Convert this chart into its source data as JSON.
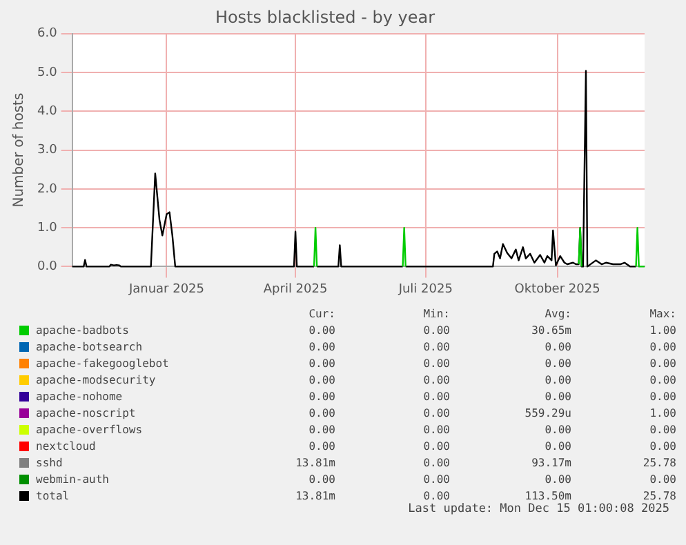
{
  "chart_data": {
    "type": "line",
    "title": "Hosts blacklisted - by year",
    "ylabel": "Number of hosts",
    "x": [
      "2024-11-10",
      "2024-11-18",
      "2024-11-19",
      "2024-11-20",
      "2024-12-06",
      "2024-12-07",
      "2024-12-09",
      "2024-12-11",
      "2024-12-13",
      "2024-12-14",
      "2025-01-04",
      "2025-01-07",
      "2025-01-09",
      "2025-01-10",
      "2025-01-12",
      "2025-01-15",
      "2025-01-17",
      "2025-01-19",
      "2025-01-21",
      "2025-04-14",
      "2025-04-15",
      "2025-04-16",
      "2025-04-28",
      "2025-04-29",
      "2025-04-30",
      "2025-05-15",
      "2025-05-16",
      "2025-05-17",
      "2025-06-29",
      "2025-06-30",
      "2025-07-01",
      "2025-08-31",
      "2025-09-01",
      "2025-09-03",
      "2025-09-05",
      "2025-09-07",
      "2025-09-10",
      "2025-09-13",
      "2025-09-16",
      "2025-09-18",
      "2025-09-21",
      "2025-09-23",
      "2025-09-26",
      "2025-09-29",
      "2025-10-03",
      "2025-10-06",
      "2025-10-08",
      "2025-10-11",
      "2025-10-12",
      "2025-10-14",
      "2025-10-17",
      "2025-10-20",
      "2025-10-22",
      "2025-10-26",
      "2025-10-28",
      "2025-10-30",
      "2025-10-31",
      "2025-11-01",
      "2025-11-02",
      "2025-11-04",
      "2025-11-05",
      "2025-11-11",
      "2025-11-15",
      "2025-11-18",
      "2025-11-23",
      "2025-11-28",
      "2025-12-01",
      "2025-12-05",
      "2025-12-09",
      "2025-12-10",
      "2025-12-11",
      "2025-12-15"
    ],
    "series": [
      {
        "name": "apache-badbots",
        "color": "#00cc00",
        "values": [
          null,
          null,
          null,
          null,
          null,
          null,
          null,
          null,
          null,
          null,
          null,
          null,
          null,
          null,
          null,
          null,
          null,
          null,
          null,
          null,
          null,
          null,
          0,
          1,
          0,
          null,
          null,
          null,
          0,
          1,
          0,
          null,
          null,
          null,
          null,
          null,
          null,
          null,
          null,
          null,
          null,
          null,
          null,
          null,
          null,
          null,
          null,
          null,
          null,
          null,
          null,
          null,
          null,
          null,
          null,
          0.06,
          1,
          0,
          null,
          null,
          null,
          null,
          null,
          null,
          null,
          null,
          null,
          null,
          0,
          1,
          0,
          0
        ]
      },
      {
        "name": "apache-botsearch",
        "color": "#0066b3",
        "values": [
          null,
          null,
          null,
          null,
          null,
          null,
          null,
          null,
          null,
          null,
          null,
          null,
          null,
          null,
          null,
          null,
          null,
          null,
          null,
          null,
          null,
          null,
          null,
          null,
          null,
          null,
          null,
          null,
          null,
          null,
          null,
          null,
          null,
          null,
          null,
          null,
          null,
          null,
          null,
          null,
          null,
          null,
          null,
          null,
          null,
          null,
          null,
          null,
          null,
          null,
          null,
          null,
          null,
          null,
          null,
          null,
          null,
          null,
          null,
          null,
          null,
          null,
          null,
          null,
          null,
          null,
          null,
          null,
          null,
          null,
          null,
          null
        ]
      },
      {
        "name": "apache-fakegooglebot",
        "color": "#ff8000",
        "values": [
          null,
          null,
          null,
          null,
          null,
          null,
          null,
          null,
          null,
          null,
          null,
          null,
          null,
          null,
          null,
          null,
          null,
          null,
          null,
          null,
          null,
          null,
          null,
          null,
          null,
          null,
          null,
          null,
          null,
          null,
          null,
          null,
          null,
          null,
          null,
          null,
          null,
          null,
          null,
          null,
          null,
          null,
          null,
          null,
          null,
          null,
          null,
          null,
          null,
          null,
          null,
          null,
          null,
          null,
          null,
          null,
          null,
          null,
          null,
          null,
          null,
          null,
          null,
          null,
          null,
          null,
          null,
          null,
          null,
          null,
          null,
          null
        ]
      },
      {
        "name": "apache-modsecurity",
        "color": "#ffcc00",
        "values": [
          null,
          null,
          null,
          null,
          null,
          null,
          null,
          null,
          null,
          null,
          null,
          null,
          null,
          null,
          null,
          null,
          null,
          null,
          null,
          null,
          null,
          null,
          null,
          null,
          null,
          null,
          null,
          null,
          null,
          null,
          null,
          null,
          null,
          null,
          null,
          null,
          null,
          null,
          null,
          null,
          null,
          null,
          null,
          null,
          null,
          null,
          null,
          null,
          null,
          null,
          null,
          null,
          null,
          null,
          null,
          null,
          null,
          null,
          null,
          null,
          null,
          null,
          null,
          null,
          null,
          null,
          null,
          null,
          null,
          null,
          null,
          null
        ]
      },
      {
        "name": "apache-nohome",
        "color": "#330099",
        "values": [
          null,
          null,
          null,
          null,
          null,
          null,
          null,
          null,
          null,
          null,
          null,
          null,
          null,
          null,
          null,
          null,
          null,
          null,
          null,
          null,
          null,
          null,
          null,
          null,
          null,
          null,
          null,
          null,
          null,
          null,
          null,
          null,
          null,
          null,
          null,
          null,
          null,
          null,
          null,
          null,
          null,
          null,
          null,
          null,
          null,
          null,
          null,
          null,
          null,
          null,
          null,
          null,
          null,
          null,
          null,
          null,
          null,
          null,
          null,
          null,
          null,
          null,
          null,
          null,
          null,
          null,
          null,
          null,
          null,
          null,
          null,
          null
        ]
      },
      {
        "name": "apache-noscript",
        "color": "#990099",
        "values": [
          null,
          null,
          null,
          null,
          null,
          null,
          null,
          null,
          null,
          null,
          null,
          null,
          null,
          null,
          null,
          null,
          null,
          null,
          null,
          null,
          null,
          null,
          null,
          null,
          null,
          null,
          null,
          null,
          null,
          null,
          null,
          null,
          null,
          null,
          null,
          null,
          null,
          null,
          null,
          null,
          null,
          null,
          null,
          null,
          null,
          null,
          null,
          null,
          null,
          null,
          null,
          null,
          null,
          null,
          null,
          null,
          null,
          null,
          null,
          null,
          null,
          null,
          null,
          null,
          null,
          null,
          null,
          null,
          null,
          null,
          null,
          null
        ]
      },
      {
        "name": "apache-overflows",
        "color": "#ccff00",
        "values": [
          null,
          null,
          null,
          null,
          null,
          null,
          null,
          null,
          null,
          null,
          null,
          null,
          null,
          null,
          null,
          null,
          null,
          null,
          null,
          null,
          null,
          null,
          null,
          null,
          null,
          null,
          null,
          null,
          null,
          null,
          null,
          null,
          null,
          null,
          null,
          null,
          null,
          null,
          null,
          null,
          null,
          null,
          null,
          null,
          null,
          null,
          null,
          null,
          null,
          null,
          null,
          null,
          null,
          null,
          null,
          null,
          null,
          null,
          null,
          null,
          null,
          null,
          null,
          null,
          null,
          null,
          null,
          null,
          null,
          null,
          null,
          null
        ]
      },
      {
        "name": "nextcloud",
        "color": "#ff0000",
        "values": [
          null,
          null,
          null,
          null,
          null,
          null,
          null,
          null,
          null,
          null,
          null,
          null,
          null,
          null,
          null,
          null,
          null,
          null,
          null,
          null,
          null,
          null,
          null,
          null,
          null,
          null,
          null,
          null,
          null,
          null,
          null,
          null,
          null,
          null,
          null,
          null,
          null,
          null,
          null,
          null,
          null,
          null,
          null,
          null,
          null,
          null,
          null,
          null,
          null,
          null,
          null,
          null,
          null,
          null,
          null,
          null,
          null,
          null,
          null,
          null,
          null,
          null,
          null,
          null,
          null,
          null,
          null,
          null,
          null,
          null,
          null,
          null
        ]
      },
      {
        "name": "sshd",
        "color": "#808080",
        "values": [
          null,
          null,
          null,
          null,
          null,
          null,
          null,
          null,
          null,
          null,
          null,
          null,
          null,
          null,
          null,
          null,
          null,
          null,
          null,
          null,
          null,
          null,
          null,
          null,
          null,
          null,
          null,
          null,
          null,
          null,
          null,
          null,
          null,
          null,
          null,
          null,
          null,
          null,
          null,
          null,
          null,
          null,
          null,
          null,
          null,
          null,
          null,
          null,
          null,
          null,
          null,
          null,
          null,
          null,
          null,
          null,
          null,
          null,
          null,
          null,
          null,
          null,
          null,
          null,
          null,
          null,
          null,
          null,
          null,
          null,
          null,
          null
        ]
      },
      {
        "name": "webmin-auth",
        "color": "#008f00",
        "values": [
          null,
          null,
          null,
          null,
          null,
          null,
          null,
          null,
          null,
          null,
          null,
          null,
          null,
          null,
          null,
          null,
          null,
          null,
          null,
          null,
          null,
          null,
          null,
          null,
          null,
          null,
          null,
          null,
          null,
          null,
          null,
          null,
          null,
          null,
          null,
          null,
          null,
          null,
          null,
          null,
          null,
          null,
          null,
          null,
          null,
          null,
          null,
          null,
          null,
          null,
          null,
          null,
          null,
          null,
          null,
          null,
          null,
          null,
          null,
          null,
          null,
          null,
          null,
          null,
          null,
          null,
          null,
          null,
          null,
          null,
          null,
          null
        ]
      },
      {
        "name": "total",
        "color": "#000000",
        "values": [
          0,
          0,
          0.17,
          0,
          0,
          0.05,
          0.03,
          0.04,
          0.03,
          0,
          0,
          2.4,
          1.6,
          1.2,
          0.8,
          1.35,
          1.4,
          0.8,
          0,
          0,
          0.9,
          0,
          0,
          null,
          0,
          0,
          0.55,
          0,
          0,
          null,
          0,
          0,
          0.33,
          0.39,
          0.21,
          0.58,
          0.35,
          0.21,
          0.44,
          0.16,
          0.5,
          0.21,
          0.33,
          0.1,
          0.3,
          0.1,
          0.27,
          0.16,
          0.93,
          0.03,
          0.27,
          0.1,
          0.06,
          0.1,
          0.06,
          0.06,
          1,
          0,
          0,
          5.04,
          0,
          0.16,
          0.06,
          0.1,
          0.06,
          0.06,
          0.1,
          0,
          0,
          null,
          null,
          null
        ]
      }
    ],
    "xlim": [
      "2024-11-10",
      "2025-12-15"
    ],
    "xticks": [
      {
        "value": "2025-01-15",
        "label": "Januar 2025"
      },
      {
        "value": "2025-04-15",
        "label": "April 2025"
      },
      {
        "value": "2025-07-15",
        "label": "Juli 2025"
      },
      {
        "value": "2025-10-15",
        "label": "Oktober 2025"
      }
    ],
    "ylim": [
      0,
      6
    ],
    "yticks": [
      {
        "value": 0,
        "label": "0.0"
      },
      {
        "value": 1,
        "label": "1.0"
      },
      {
        "value": 2,
        "label": "2.0"
      },
      {
        "value": 3,
        "label": "3.0"
      },
      {
        "value": 4,
        "label": "4.0"
      },
      {
        "value": 5,
        "label": "5.0"
      },
      {
        "value": 6,
        "label": "6.0"
      }
    ],
    "grid": true,
    "legend": "bottom",
    "marker": "none",
    "line_style": "solid",
    "annotations": [
      "Cur:",
      "Min:",
      "Avg:",
      "Max:",
      "0.00",
      "0.00",
      "30.65m",
      "1.00",
      "0.00",
      "0.00",
      "0.00",
      "0.00",
      "0.00",
      "0.00",
      "0.00",
      "0.00",
      "0.00",
      "0.00",
      "0.00",
      "0.00",
      "0.00",
      "0.00",
      "0.00",
      "0.00",
      "0.00",
      "0.00",
      "559.29u",
      "1.00",
      "0.00",
      "0.00",
      "0.00",
      "0.00",
      "0.00",
      "0.00",
      "0.00",
      "0.00",
      "13.81m",
      "0.00",
      "93.17m",
      "25.78",
      "0.00",
      "0.00",
      "0.00",
      "0.00",
      "13.81m",
      "0.00",
      "113.50m",
      "25.78",
      "Last update: Mon Dec 15 01:00:08 2025"
    ]
  }
}
